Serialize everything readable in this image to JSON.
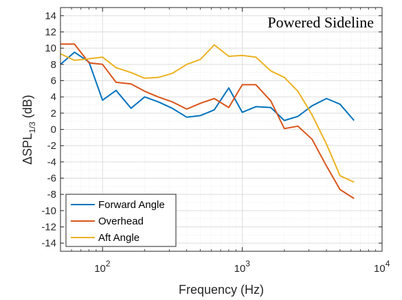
{
  "chart_data": {
    "type": "line",
    "title": "Powered Sideline",
    "xlabel": "Frequency (Hz)",
    "ylabel": {
      "prefix": "ΔSPL",
      "subscript": "1/3",
      "suffix": " (dB)"
    },
    "xscale": "log",
    "xlim": [
      50,
      10000
    ],
    "ylim": [
      -15,
      15
    ],
    "grid": true,
    "legend_location": "bottom-left",
    "x_ticks": [
      {
        "value": 100,
        "label": "10",
        "exp": "2"
      },
      {
        "value": 1000,
        "label": "10",
        "exp": "3"
      },
      {
        "value": 10000,
        "label": "10",
        "exp": "4"
      }
    ],
    "y_ticks": [
      -14,
      -12,
      -10,
      -8,
      -6,
      -4,
      -2,
      0,
      2,
      4,
      6,
      8,
      10,
      12,
      14
    ],
    "x": [
      50,
      63,
      80,
      100,
      125,
      160,
      200,
      250,
      315,
      400,
      500,
      630,
      800,
      1000,
      1250,
      1600,
      2000,
      2500,
      3150,
      4000,
      5000,
      6300
    ],
    "series": [
      {
        "name": "Forward Angle",
        "color": "#0072BD",
        "values": [
          8.0,
          9.5,
          8.3,
          3.6,
          4.8,
          2.6,
          4.0,
          3.4,
          2.6,
          1.5,
          1.7,
          2.4,
          5.1,
          2.1,
          2.8,
          2.7,
          1.1,
          1.6,
          2.9,
          3.8,
          3.1,
          1.1
        ]
      },
      {
        "name": "Overhead",
        "color": "#D95319",
        "values": [
          10.5,
          10.5,
          8.2,
          8.0,
          5.8,
          5.6,
          4.7,
          4.0,
          3.4,
          2.5,
          3.2,
          3.8,
          2.7,
          5.5,
          5.5,
          3.5,
          0.1,
          0.4,
          -1.2,
          -4.5,
          -7.4,
          -8.5
        ]
      },
      {
        "name": "Aft Angle",
        "color": "#EDB120",
        "values": [
          9.3,
          8.5,
          8.7,
          8.9,
          7.6,
          7.0,
          6.3,
          6.4,
          6.9,
          8.0,
          8.6,
          10.4,
          9.0,
          9.1,
          8.9,
          7.2,
          6.4,
          4.7,
          1.8,
          -1.8,
          -5.7,
          -6.5
        ]
      }
    ]
  }
}
